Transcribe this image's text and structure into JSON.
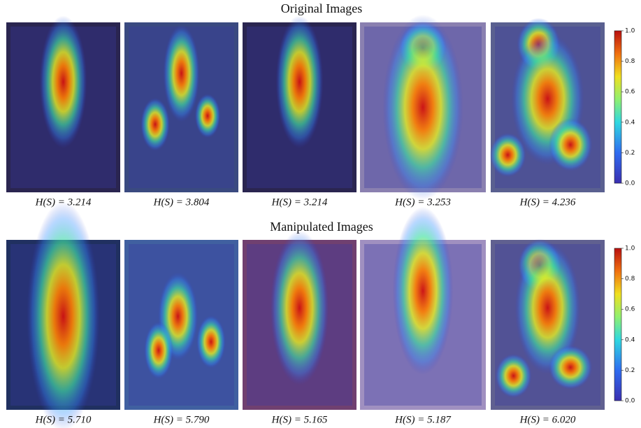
{
  "rows": [
    {
      "title": "Original Images",
      "captions": [
        "H(S) = 3.214",
        "H(S) = 3.804",
        "H(S) = 3.214",
        "H(S) = 3.253",
        "H(S) = 4.236"
      ],
      "colorbar": {
        "ylim": [
          0,
          1
        ],
        "ticks": [
          {
            "value": 0,
            "label": "0.0"
          },
          0.2,
          0.4,
          0.6,
          0.8,
          {
            "value": 1,
            "label": "1.0"
          }
        ]
      }
    },
    {
      "title": "Manipulated Images",
      "captions": [
        "H(S) = 5.710",
        "H(S) = 5.790",
        "H(S) = 5.165",
        "H(S) = 5.187",
        "H(S) = 6.020"
      ],
      "colorbar": {
        "ylim": [
          0,
          1
        ],
        "ticks": [
          {
            "value": 0,
            "label": "0.0"
          },
          0.2,
          0.4,
          0.6,
          0.8,
          {
            "value": 1,
            "label": "1.0"
          }
        ]
      }
    }
  ]
}
